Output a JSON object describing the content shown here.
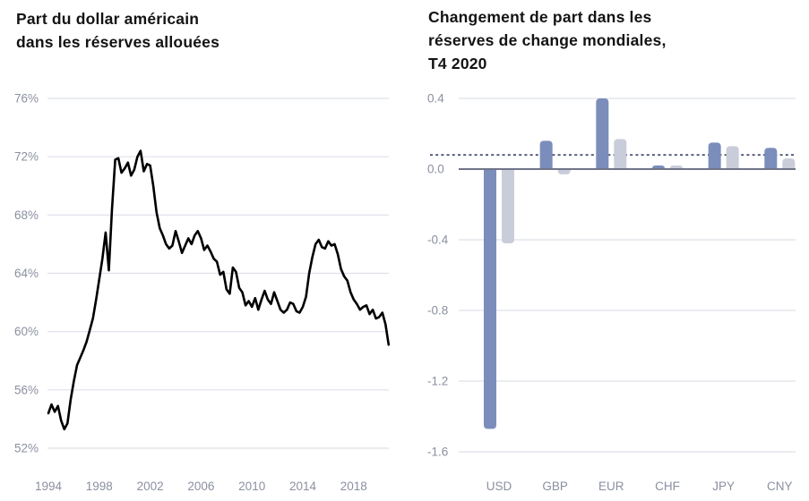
{
  "page": {
    "background": "#ffffff",
    "title_color": "#131313",
    "tick_color": "#8b90a1",
    "grid_color": "#dde0e8"
  },
  "chart_data": [
    {
      "type": "line",
      "title_lines": [
        "Part du dollar américain",
        "dans les réserves allouées"
      ],
      "unit": "%",
      "x_start": 1994,
      "x_step": 0.25,
      "values": [
        54.4,
        55.0,
        54.5,
        54.9,
        53.9,
        53.3,
        53.7,
        55.3,
        56.6,
        57.7,
        58.2,
        58.7,
        59.3,
        60.1,
        60.9,
        62.2,
        63.6,
        65.0,
        66.8,
        64.2,
        68.4,
        71.8,
        71.9,
        70.9,
        71.2,
        71.6,
        70.7,
        71.1,
        72.0,
        72.4,
        71.0,
        71.5,
        71.4,
        70.0,
        68.2,
        67.1,
        66.6,
        66.0,
        65.7,
        65.9,
        66.9,
        66.2,
        65.4,
        65.9,
        66.4,
        66.0,
        66.6,
        66.9,
        66.4,
        65.6,
        65.9,
        65.5,
        65.0,
        64.8,
        63.9,
        64.1,
        62.9,
        62.6,
        64.4,
        64.1,
        63.0,
        62.7,
        61.8,
        62.1,
        61.7,
        62.3,
        61.5,
        62.2,
        62.8,
        62.2,
        61.9,
        62.7,
        62.1,
        61.5,
        61.3,
        61.5,
        62.0,
        61.9,
        61.4,
        61.3,
        61.7,
        62.4,
        64.0,
        65.1,
        66.0,
        66.3,
        65.8,
        65.7,
        66.2,
        65.9,
        66.0,
        65.3,
        64.3,
        63.8,
        63.5,
        62.7,
        62.2,
        61.9,
        61.5,
        61.7,
        61.8,
        61.2,
        61.5,
        60.9,
        61.0,
        61.3,
        60.5,
        59.1
      ],
      "y_ticks": [
        {
          "value": 76,
          "label": "76%"
        },
        {
          "value": 72,
          "label": "72%"
        },
        {
          "value": 68,
          "label": "68%"
        },
        {
          "value": 64,
          "label": "64%"
        },
        {
          "value": 60,
          "label": "60%"
        },
        {
          "value": 56,
          "label": "56%"
        },
        {
          "value": 52,
          "label": "52%"
        }
      ],
      "x_ticks": [
        {
          "value": 1994,
          "label": "1994"
        },
        {
          "value": 1998,
          "label": "1998"
        },
        {
          "value": 2002,
          "label": "2002"
        },
        {
          "value": 2006,
          "label": "2006"
        },
        {
          "value": 2010,
          "label": "2010"
        },
        {
          "value": 2014,
          "label": "2014"
        },
        {
          "value": 2018,
          "label": "2018"
        }
      ],
      "ylim": [
        52,
        76
      ],
      "xlim": [
        1994,
        2021
      ],
      "line_color": "#000000",
      "grid": true,
      "legend": "none"
    },
    {
      "type": "bar",
      "title_lines": [
        "Changement de part dans les",
        "réserves de change mondiales,",
        "T4 2020"
      ],
      "categories": [
        "USD",
        "GBP",
        "EUR",
        "CHF",
        "JPY",
        "CNY"
      ],
      "series": [
        {
          "name": "blue",
          "color": "#7b8dbb",
          "values": [
            -1.47,
            0.16,
            0.4,
            0.02,
            0.15,
            0.12
          ]
        },
        {
          "name": "gray",
          "color": "#c9cdd9",
          "values": [
            -0.42,
            -0.03,
            0.17,
            0.02,
            0.13,
            0.06
          ]
        }
      ],
      "y_ticks": [
        {
          "value": 0.4,
          "label": "0.4"
        },
        {
          "value": 0.0,
          "label": "0.0"
        },
        {
          "value": -0.4,
          "label": "-0.4"
        },
        {
          "value": -0.8,
          "label": "-0.8"
        },
        {
          "value": -1.2,
          "label": "-1.2"
        },
        {
          "value": -1.6,
          "label": "-1.6"
        }
      ],
      "ylim": [
        -1.6,
        0.4
      ],
      "reference_line": {
        "value": 0.08,
        "style": "dashed",
        "color": "#4a5472"
      },
      "zero_line_color": "#6f7488",
      "grid": true,
      "legend": "none"
    }
  ]
}
